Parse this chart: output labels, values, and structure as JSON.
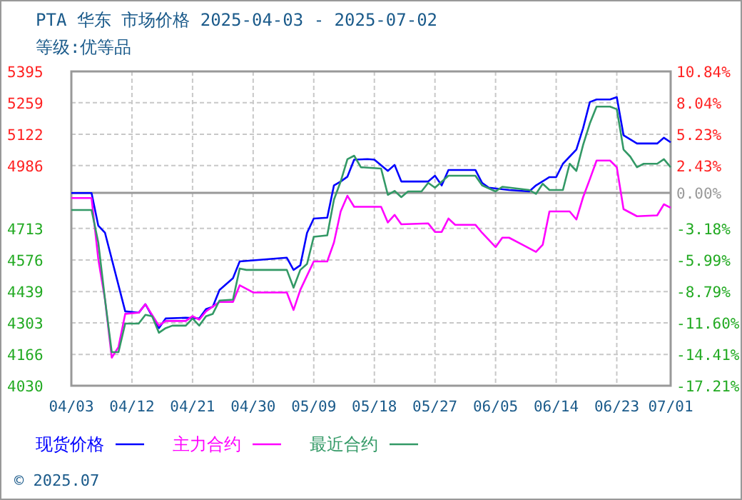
{
  "chart_data": {
    "type": "line",
    "title": "PTA 华东 市场价格 2025-04-03 - 2025-07-02",
    "subtitle": "等级:优等品",
    "xlim": [
      "2025-04-03",
      "2025-07-01"
    ],
    "xticks": [
      {
        "value": "2025-04-03",
        "label": "04/03"
      },
      {
        "value": "2025-04-12",
        "label": "04/12"
      },
      {
        "value": "2025-04-21",
        "label": "04/21"
      },
      {
        "value": "2025-04-30",
        "label": "04/30"
      },
      {
        "value": "2025-05-09",
        "label": "05/09"
      },
      {
        "value": "2025-05-18",
        "label": "05/18"
      },
      {
        "value": "2025-05-27",
        "label": "05/27"
      },
      {
        "value": "2025-06-05",
        "label": "06/05"
      },
      {
        "value": "2025-06-14",
        "label": "06/14"
      },
      {
        "value": "2025-06-23",
        "label": "06/23"
      },
      {
        "value": "2025-07-01",
        "label": "07/01"
      }
    ],
    "ylim": [
      4030,
      5395
    ],
    "yticks": [
      5395,
      5259,
      5122,
      4986,
      4713,
      4576,
      4439,
      4303,
      4166,
      4030
    ],
    "y2lim": [
      -17.21,
      10.84
    ],
    "y2ticks": [
      {
        "value": 10.84,
        "label": "10.84%"
      },
      {
        "value": 8.04,
        "label": "8.04%"
      },
      {
        "value": 5.23,
        "label": "5.23%"
      },
      {
        "value": 2.43,
        "label": "2.43%"
      },
      {
        "value": 0,
        "label": "0.00%"
      },
      {
        "value": -3.18,
        "label": "-3.18%"
      },
      {
        "value": -5.99,
        "label": "-5.99%"
      },
      {
        "value": -8.79,
        "label": "-8.79%"
      },
      {
        "value": -11.6,
        "label": "-11.60%"
      },
      {
        "value": -14.41,
        "label": "-14.41%"
      },
      {
        "value": -17.21,
        "label": "-17.21%"
      }
    ],
    "ref_lines": [
      {
        "axis": "y2",
        "value": 0,
        "color": "#999999"
      }
    ],
    "grid": true,
    "legend": "bottom",
    "line_style": "solid",
    "marker": "none",
    "annotations": [
      "© 2025.07"
    ],
    "series": [
      {
        "name": "现货价格",
        "color": "#0000ff",
        "x": [
          "2025-04-03",
          "2025-04-06",
          "2025-04-07",
          "2025-04-08",
          "2025-04-11",
          "2025-04-13",
          "2025-04-14",
          "2025-04-16",
          "2025-04-17",
          "2025-04-20",
          "2025-04-22",
          "2025-04-23",
          "2025-04-24",
          "2025-04-25",
          "2025-04-27",
          "2025-04-28",
          "2025-05-05",
          "2025-05-06",
          "2025-05-07",
          "2025-05-08",
          "2025-05-09",
          "2025-05-11",
          "2025-05-12",
          "2025-05-13",
          "2025-05-14",
          "2025-05-15",
          "2025-05-17",
          "2025-05-18",
          "2025-05-20",
          "2025-05-21",
          "2025-05-22",
          "2025-05-26",
          "2025-05-27",
          "2025-05-28",
          "2025-05-29",
          "2025-06-02",
          "2025-06-03",
          "2025-06-04",
          "2025-06-07",
          "2025-06-10",
          "2025-06-11",
          "2025-06-13",
          "2025-06-14",
          "2025-06-15",
          "2025-06-17",
          "2025-06-18",
          "2025-06-19",
          "2025-06-20",
          "2025-06-22",
          "2025-06-23",
          "2025-06-24",
          "2025-06-26",
          "2025-06-29",
          "2025-06-30",
          "2025-07-01"
        ],
        "values": [
          4867,
          4867,
          4725,
          4694,
          4353,
          4347,
          4384,
          4280,
          4322,
          4325,
          4322,
          4363,
          4373,
          4446,
          4497,
          4570,
          4586,
          4533,
          4553,
          4694,
          4756,
          4760,
          4900,
          4917,
          4938,
          5012,
          5014,
          5012,
          4963,
          4989,
          4917,
          4917,
          4942,
          4900,
          4967,
          4967,
          4911,
          4890,
          4880,
          4874,
          4900,
          4936,
          4936,
          4994,
          5056,
          5149,
          5262,
          5273,
          5273,
          5283,
          5118,
          5082,
          5082,
          5107,
          5087
        ]
      },
      {
        "name": "主力合约",
        "color": "#ff00ff",
        "x": [
          "2025-04-03",
          "2025-04-06",
          "2025-04-07",
          "2025-04-08",
          "2025-04-09",
          "2025-04-10",
          "2025-04-11",
          "2025-04-13",
          "2025-04-14",
          "2025-04-16",
          "2025-04-17",
          "2025-04-20",
          "2025-04-21",
          "2025-04-22",
          "2025-04-23",
          "2025-04-25",
          "2025-04-27",
          "2025-04-28",
          "2025-04-30",
          "2025-05-05",
          "2025-05-06",
          "2025-05-07",
          "2025-05-08",
          "2025-05-09",
          "2025-05-11",
          "2025-05-12",
          "2025-05-13",
          "2025-05-14",
          "2025-05-15",
          "2025-05-19",
          "2025-05-20",
          "2025-05-21",
          "2025-05-22",
          "2025-05-26",
          "2025-05-27",
          "2025-05-28",
          "2025-05-29",
          "2025-05-30",
          "2025-06-02",
          "2025-06-03",
          "2025-06-05",
          "2025-06-06",
          "2025-06-07",
          "2025-06-09",
          "2025-06-11",
          "2025-06-12",
          "2025-06-13",
          "2025-06-16",
          "2025-06-17",
          "2025-06-18",
          "2025-06-19",
          "2025-06-20",
          "2025-06-22",
          "2025-06-23",
          "2025-06-24",
          "2025-06-26",
          "2025-06-29",
          "2025-06-30",
          "2025-07-01"
        ],
        "values": [
          4845,
          4845,
          4580,
          4404,
          4152,
          4198,
          4342,
          4347,
          4384,
          4291,
          4311,
          4311,
          4332,
          4317,
          4353,
          4394,
          4394,
          4466,
          4435,
          4435,
          4359,
          4446,
          4508,
          4570,
          4570,
          4652,
          4787,
          4855,
          4807,
          4807,
          4739,
          4772,
          4731,
          4735,
          4698,
          4698,
          4756,
          4729,
          4729,
          4694,
          4632,
          4673,
          4673,
          4642,
          4611,
          4642,
          4787,
          4787,
          4752,
          4849,
          4927,
          5008,
          5008,
          4979,
          4797,
          4766,
          4770,
          4818,
          4803
        ]
      },
      {
        "name": "最近合约",
        "color": "#339966",
        "x": [
          "2025-04-03",
          "2025-04-06",
          "2025-04-07",
          "2025-04-08",
          "2025-04-09",
          "2025-04-10",
          "2025-04-11",
          "2025-04-13",
          "2025-04-14",
          "2025-04-15",
          "2025-04-16",
          "2025-04-17",
          "2025-04-18",
          "2025-04-20",
          "2025-04-21",
          "2025-04-22",
          "2025-04-23",
          "2025-04-24",
          "2025-04-25",
          "2025-04-27",
          "2025-04-28",
          "2025-04-29",
          "2025-05-05",
          "2025-05-06",
          "2025-05-07",
          "2025-05-08",
          "2025-05-09",
          "2025-05-11",
          "2025-05-12",
          "2025-05-13",
          "2025-05-14",
          "2025-05-15",
          "2025-05-16",
          "2025-05-19",
          "2025-05-20",
          "2025-05-21",
          "2025-05-22",
          "2025-05-23",
          "2025-05-25",
          "2025-05-26",
          "2025-05-27",
          "2025-05-29",
          "2025-06-02",
          "2025-06-03",
          "2025-06-05",
          "2025-06-06",
          "2025-06-10",
          "2025-06-11",
          "2025-06-12",
          "2025-06-13",
          "2025-06-15",
          "2025-06-16",
          "2025-06-17",
          "2025-06-18",
          "2025-06-19",
          "2025-06-20",
          "2025-06-22",
          "2025-06-23",
          "2025-06-24",
          "2025-06-25",
          "2025-06-26",
          "2025-06-27",
          "2025-06-29",
          "2025-06-30",
          "2025-07-01"
        ],
        "values": [
          4793,
          4793,
          4652,
          4404,
          4176,
          4176,
          4300,
          4300,
          4338,
          4332,
          4260,
          4280,
          4291,
          4291,
          4322,
          4291,
          4332,
          4342,
          4400,
          4404,
          4539,
          4533,
          4533,
          4456,
          4533,
          4559,
          4677,
          4683,
          4838,
          4917,
          5014,
          5029,
          4979,
          4973,
          4859,
          4876,
          4849,
          4874,
          4874,
          4911,
          4890,
          4942,
          4942,
          4900,
          4874,
          4894,
          4880,
          4863,
          4907,
          4880,
          4880,
          4994,
          4963,
          5076,
          5169,
          5242,
          5242,
          5231,
          5056,
          5025,
          4979,
          4994,
          4994,
          5014,
          4979
        ]
      }
    ]
  }
}
